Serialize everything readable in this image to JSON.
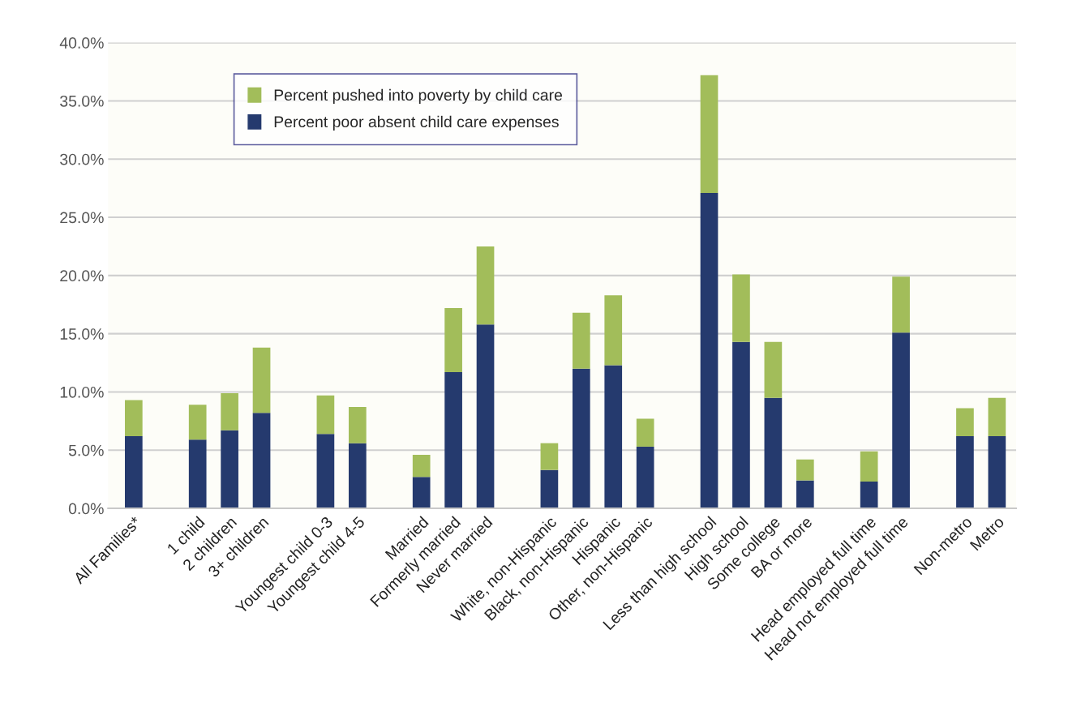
{
  "chart_data": {
    "type": "bar",
    "stacked": true,
    "categories": [
      "All Families*",
      null,
      "1 child",
      "2 children",
      "3+ children",
      null,
      "Youngest child 0-3",
      "Youngest child 4-5",
      null,
      "Married",
      "Formerly married",
      "Never married",
      null,
      "White, non-Hispanic",
      "Black, non-Hispanic",
      "Hispanic",
      "Other, non-Hispanic",
      null,
      "Less than high school",
      "High school",
      "Some college",
      "BA or more",
      null,
      "Head employed full time",
      "Head not employed full time",
      null,
      "Non-metro",
      "Metro"
    ],
    "series": [
      {
        "name": "Percent poor absent child care expenses",
        "color": "#253a6e",
        "values": [
          6.2,
          null,
          5.9,
          6.7,
          8.2,
          null,
          6.4,
          5.6,
          null,
          2.7,
          11.7,
          15.8,
          null,
          3.3,
          12.0,
          12.3,
          5.3,
          null,
          27.1,
          14.3,
          9.5,
          2.4,
          null,
          2.3,
          15.1,
          null,
          6.2,
          6.2
        ]
      },
      {
        "name": "Percent pushed into poverty by child care",
        "color": "#a2bd5a",
        "values": [
          3.1,
          null,
          3.0,
          3.2,
          5.6,
          null,
          3.3,
          3.1,
          null,
          1.9,
          5.5,
          6.7,
          null,
          2.3,
          4.8,
          6.0,
          2.4,
          null,
          10.1,
          5.8,
          4.8,
          1.8,
          null,
          2.6,
          4.8,
          null,
          2.4,
          3.3
        ]
      }
    ],
    "ylim": [
      0,
      40
    ],
    "yticks": [
      {
        "value": 0,
        "label": "0.0%"
      },
      {
        "value": 5,
        "label": "5.0%"
      },
      {
        "value": 10,
        "label": "10.0%"
      },
      {
        "value": 15,
        "label": "15.0%"
      },
      {
        "value": 20,
        "label": "20.0%"
      },
      {
        "value": 25,
        "label": "25.0%"
      },
      {
        "value": 30,
        "label": "30.0%"
      },
      {
        "value": 35,
        "label": "35.0%"
      },
      {
        "value": 40,
        "label": "40.0%"
      }
    ],
    "grid": "y",
    "legend": "top left"
  }
}
